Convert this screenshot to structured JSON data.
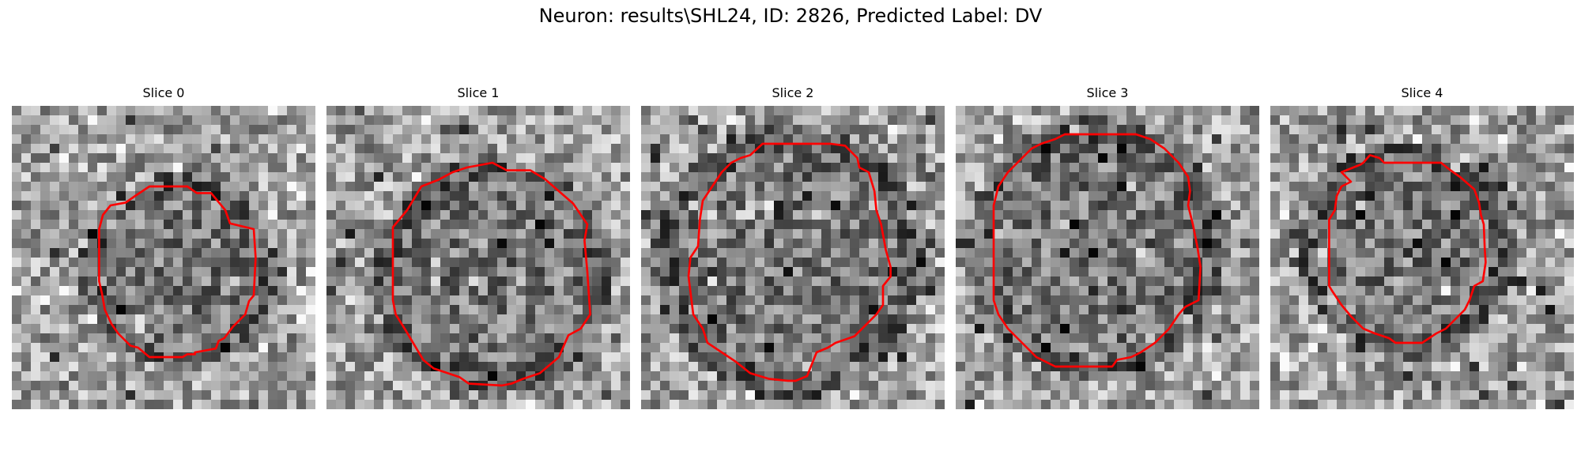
{
  "figure": {
    "title": "Neuron: results\\SHL24, ID: 2826, Predicted Label: DV"
  },
  "panels": [
    {
      "title": "Slice 0"
    },
    {
      "title": "Slice 1"
    },
    {
      "title": "Slice 2"
    },
    {
      "title": "Slice 3"
    },
    {
      "title": "Slice 4"
    }
  ],
  "colors": {
    "contour": "#ff0000",
    "background": "#ffffff"
  },
  "grid": {
    "rows": 32,
    "cols": 32
  }
}
